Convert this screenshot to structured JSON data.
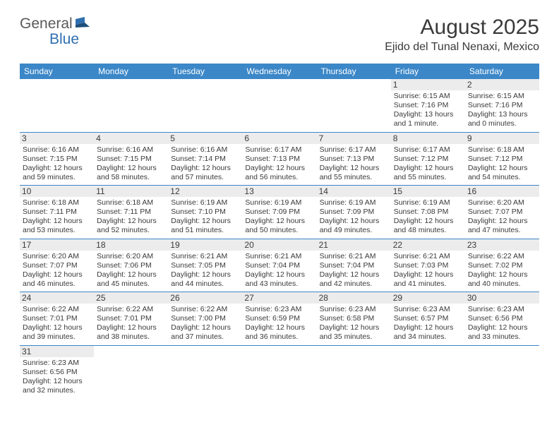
{
  "logo": {
    "part1": "General",
    "part2": "Blue"
  },
  "title": "August 2025",
  "location": "Ejido del Tunal Nenaxi, Mexico",
  "colors": {
    "header_bg": "#3b87c8",
    "header_text": "#ffffff",
    "daynum_bg": "#ececec",
    "border": "#3b87c8",
    "text": "#3a3a3a",
    "logo_gray": "#5a5a5a",
    "logo_blue": "#2f6fb0"
  },
  "typography": {
    "title_fontsize": 30,
    "location_fontsize": 16,
    "dayheader_fontsize": 12,
    "daynum_fontsize": 12,
    "body_fontsize": 10.5
  },
  "dayHeaders": [
    "Sunday",
    "Monday",
    "Tuesday",
    "Wednesday",
    "Thursday",
    "Friday",
    "Saturday"
  ],
  "weeks": [
    [
      null,
      null,
      null,
      null,
      null,
      {
        "n": "1",
        "sr": "6:15 AM",
        "ss": "7:16 PM",
        "dl": "13 hours and 1 minute."
      },
      {
        "n": "2",
        "sr": "6:15 AM",
        "ss": "7:16 PM",
        "dl": "13 hours and 0 minutes."
      }
    ],
    [
      {
        "n": "3",
        "sr": "6:16 AM",
        "ss": "7:15 PM",
        "dl": "12 hours and 59 minutes."
      },
      {
        "n": "4",
        "sr": "6:16 AM",
        "ss": "7:15 PM",
        "dl": "12 hours and 58 minutes."
      },
      {
        "n": "5",
        "sr": "6:16 AM",
        "ss": "7:14 PM",
        "dl": "12 hours and 57 minutes."
      },
      {
        "n": "6",
        "sr": "6:17 AM",
        "ss": "7:13 PM",
        "dl": "12 hours and 56 minutes."
      },
      {
        "n": "7",
        "sr": "6:17 AM",
        "ss": "7:13 PM",
        "dl": "12 hours and 55 minutes."
      },
      {
        "n": "8",
        "sr": "6:17 AM",
        "ss": "7:12 PM",
        "dl": "12 hours and 55 minutes."
      },
      {
        "n": "9",
        "sr": "6:18 AM",
        "ss": "7:12 PM",
        "dl": "12 hours and 54 minutes."
      }
    ],
    [
      {
        "n": "10",
        "sr": "6:18 AM",
        "ss": "7:11 PM",
        "dl": "12 hours and 53 minutes."
      },
      {
        "n": "11",
        "sr": "6:18 AM",
        "ss": "7:11 PM",
        "dl": "12 hours and 52 minutes."
      },
      {
        "n": "12",
        "sr": "6:19 AM",
        "ss": "7:10 PM",
        "dl": "12 hours and 51 minutes."
      },
      {
        "n": "13",
        "sr": "6:19 AM",
        "ss": "7:09 PM",
        "dl": "12 hours and 50 minutes."
      },
      {
        "n": "14",
        "sr": "6:19 AM",
        "ss": "7:09 PM",
        "dl": "12 hours and 49 minutes."
      },
      {
        "n": "15",
        "sr": "6:19 AM",
        "ss": "7:08 PM",
        "dl": "12 hours and 48 minutes."
      },
      {
        "n": "16",
        "sr": "6:20 AM",
        "ss": "7:07 PM",
        "dl": "12 hours and 47 minutes."
      }
    ],
    [
      {
        "n": "17",
        "sr": "6:20 AM",
        "ss": "7:07 PM",
        "dl": "12 hours and 46 minutes."
      },
      {
        "n": "18",
        "sr": "6:20 AM",
        "ss": "7:06 PM",
        "dl": "12 hours and 45 minutes."
      },
      {
        "n": "19",
        "sr": "6:21 AM",
        "ss": "7:05 PM",
        "dl": "12 hours and 44 minutes."
      },
      {
        "n": "20",
        "sr": "6:21 AM",
        "ss": "7:04 PM",
        "dl": "12 hours and 43 minutes."
      },
      {
        "n": "21",
        "sr": "6:21 AM",
        "ss": "7:04 PM",
        "dl": "12 hours and 42 minutes."
      },
      {
        "n": "22",
        "sr": "6:21 AM",
        "ss": "7:03 PM",
        "dl": "12 hours and 41 minutes."
      },
      {
        "n": "23",
        "sr": "6:22 AM",
        "ss": "7:02 PM",
        "dl": "12 hours and 40 minutes."
      }
    ],
    [
      {
        "n": "24",
        "sr": "6:22 AM",
        "ss": "7:01 PM",
        "dl": "12 hours and 39 minutes."
      },
      {
        "n": "25",
        "sr": "6:22 AM",
        "ss": "7:01 PM",
        "dl": "12 hours and 38 minutes."
      },
      {
        "n": "26",
        "sr": "6:22 AM",
        "ss": "7:00 PM",
        "dl": "12 hours and 37 minutes."
      },
      {
        "n": "27",
        "sr": "6:23 AM",
        "ss": "6:59 PM",
        "dl": "12 hours and 36 minutes."
      },
      {
        "n": "28",
        "sr": "6:23 AM",
        "ss": "6:58 PM",
        "dl": "12 hours and 35 minutes."
      },
      {
        "n": "29",
        "sr": "6:23 AM",
        "ss": "6:57 PM",
        "dl": "12 hours and 34 minutes."
      },
      {
        "n": "30",
        "sr": "6:23 AM",
        "ss": "6:56 PM",
        "dl": "12 hours and 33 minutes."
      }
    ],
    [
      {
        "n": "31",
        "sr": "6:23 AM",
        "ss": "6:56 PM",
        "dl": "12 hours and 32 minutes."
      },
      null,
      null,
      null,
      null,
      null,
      null
    ]
  ],
  "labels": {
    "sunrise": "Sunrise:",
    "sunset": "Sunset:",
    "daylight": "Daylight:"
  }
}
